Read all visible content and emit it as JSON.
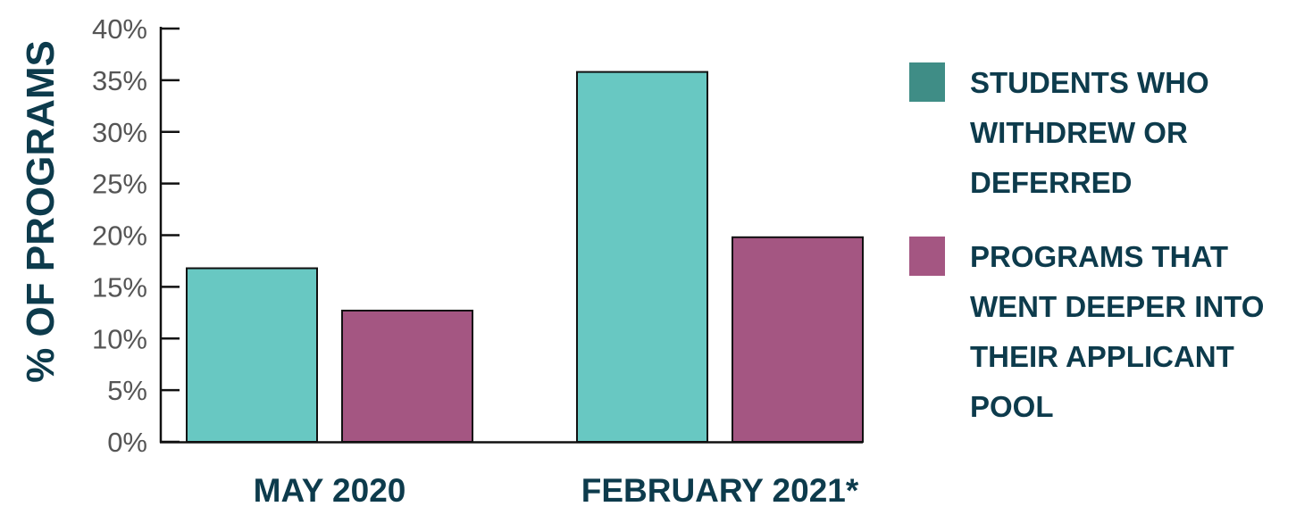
{
  "chart_data": {
    "type": "bar",
    "categories": [
      "MAY 2020",
      "FEBRUARY 2021*"
    ],
    "series": [
      {
        "name": "STUDENTS WHO WITHDREW OR DEFERRED",
        "values": [
          16.8,
          35.8
        ],
        "color": "#68c8c2"
      },
      {
        "name": "PROGRAMS THAT WENT DEEPER INTO THEIR APPLICANT POOL",
        "values": [
          12.7,
          19.8
        ],
        "color": "#a45682"
      }
    ],
    "ylabel": "% OF PROGRAMS",
    "xlabel": "",
    "ylim": [
      0,
      40
    ],
    "yticks": [
      "0%",
      "5%",
      "10%",
      "15%",
      "20%",
      "25%",
      "30%",
      "35%",
      "40%"
    ],
    "grid": false,
    "legend_position": "right"
  },
  "legend": {
    "items": [
      {
        "label": "STUDENTS WHO WITHDREW OR DEFERRED",
        "swatch_color": "#3f8d86"
      },
      {
        "label": "PROGRAMS THAT WENT DEEPER INTO THEIR APPLICANT POOL",
        "swatch_color": "#a45682"
      }
    ]
  }
}
